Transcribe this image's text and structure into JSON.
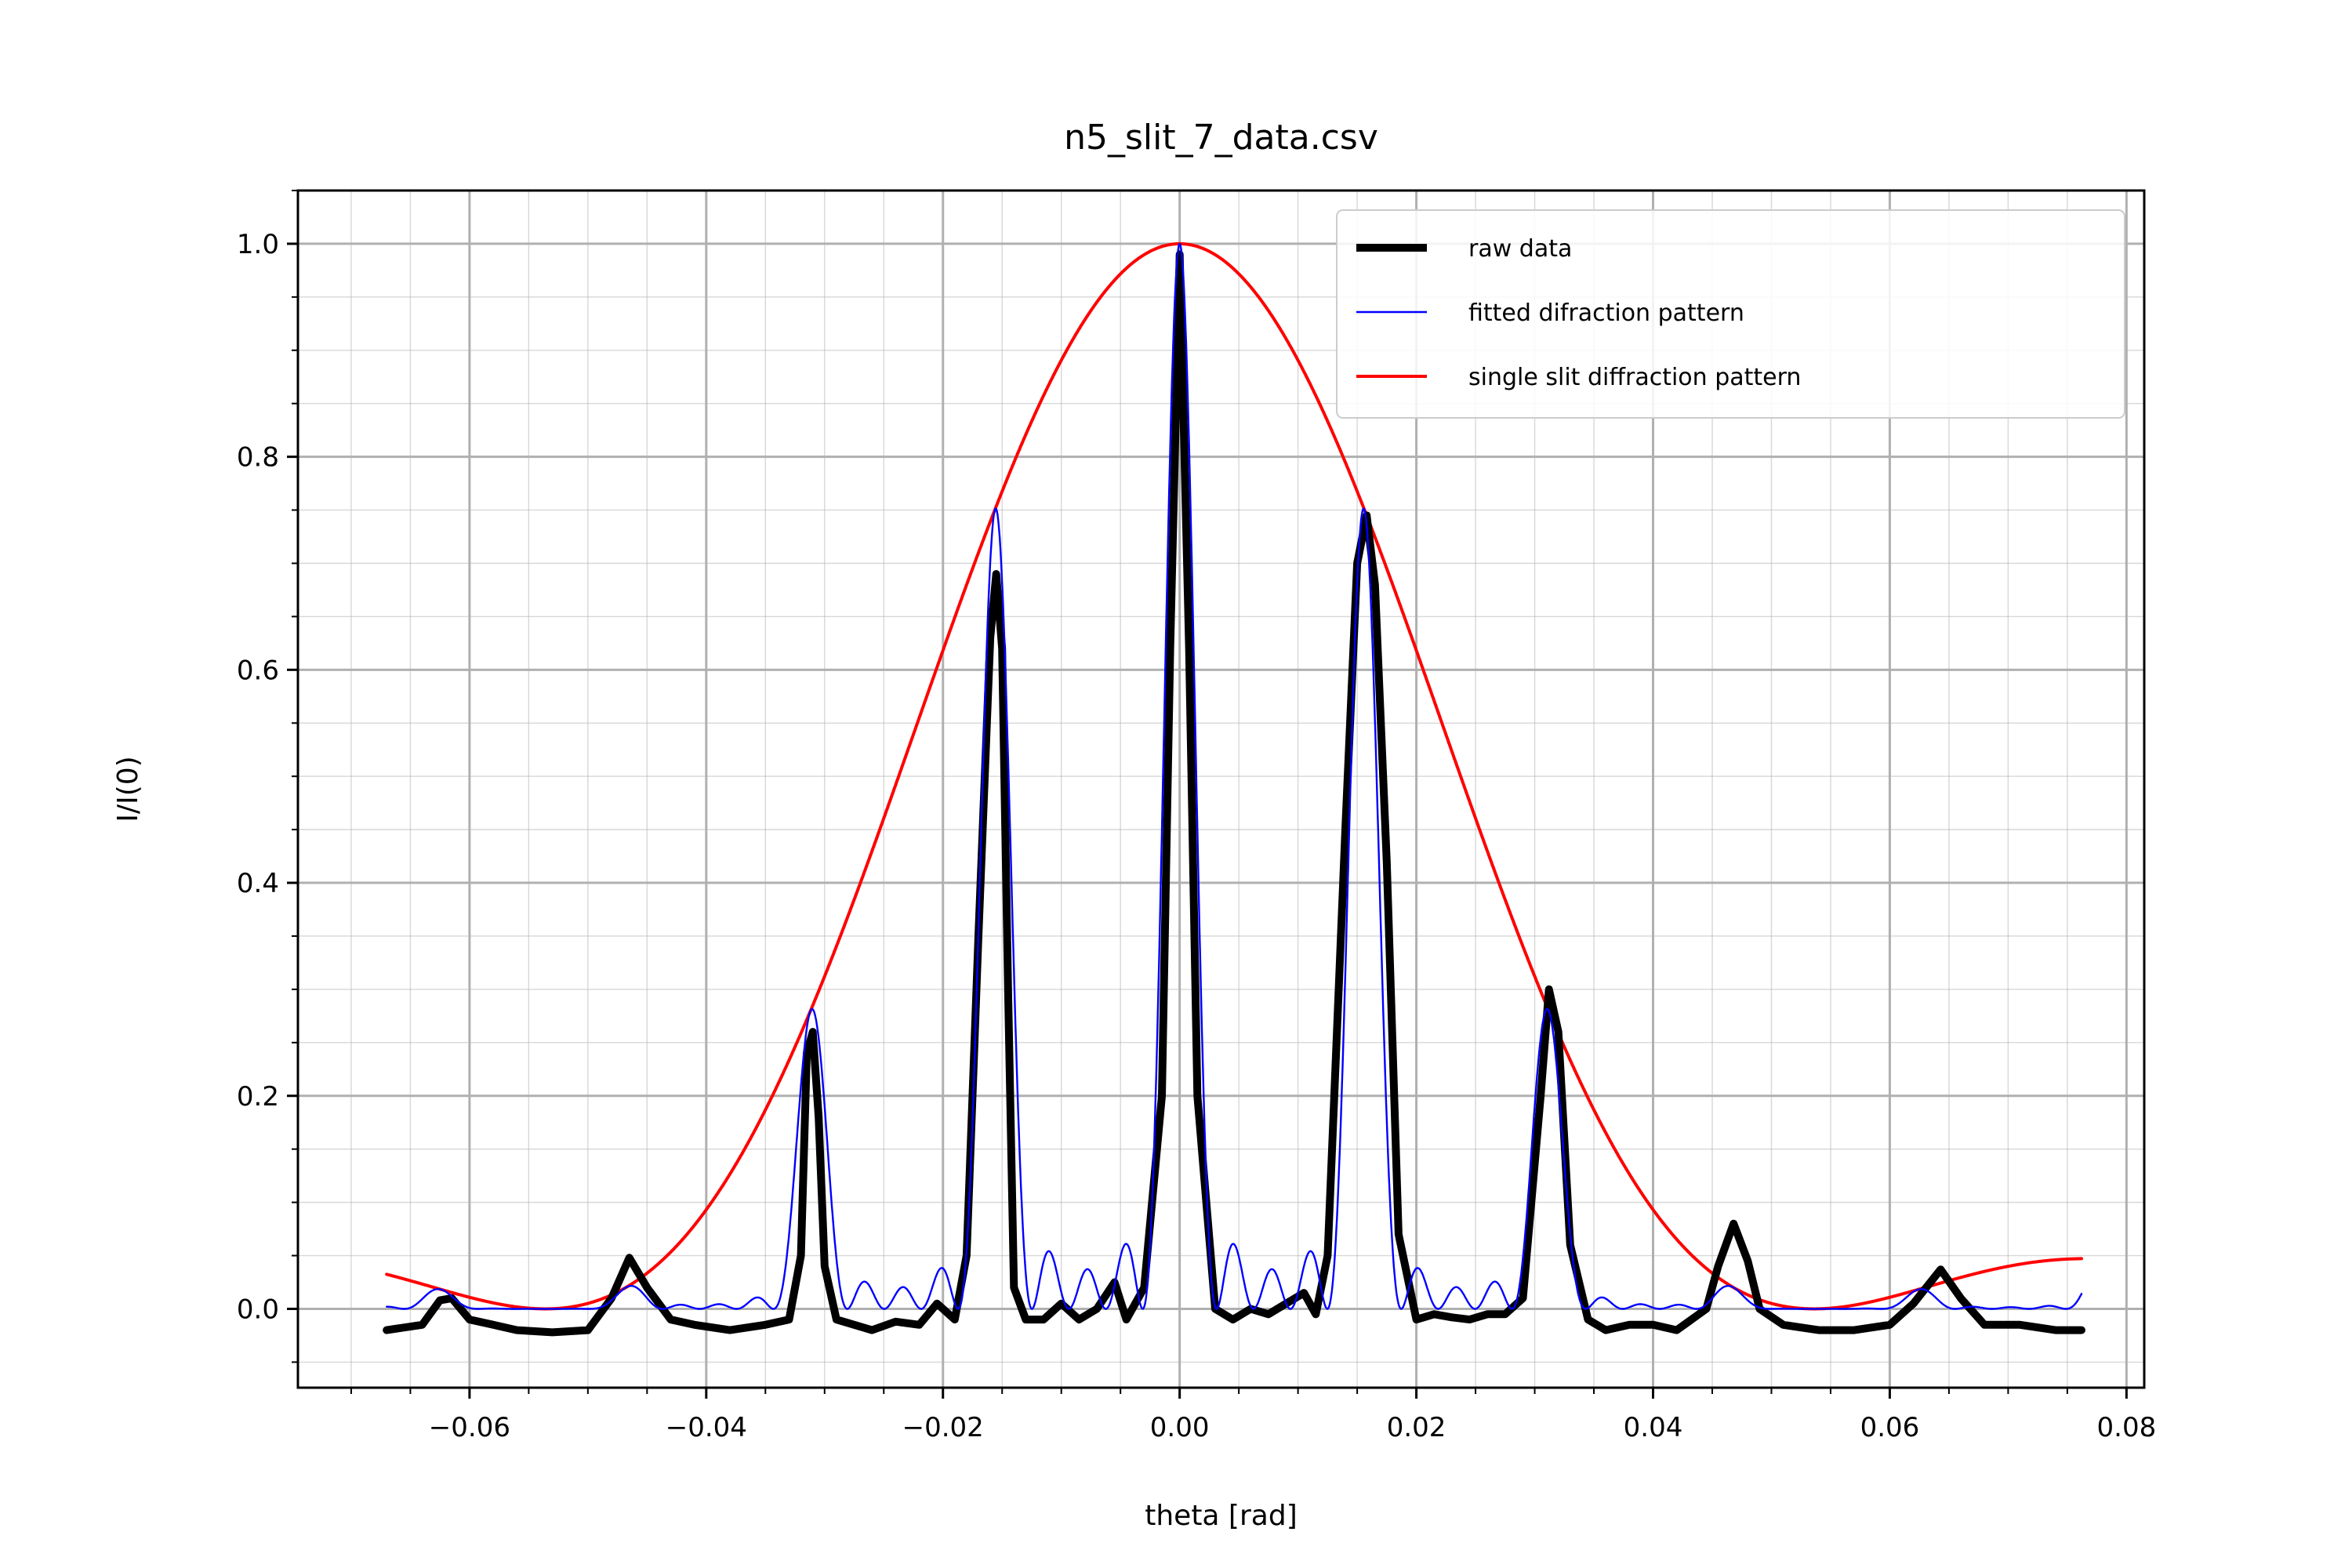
{
  "chart_data": {
    "type": "line",
    "title": "n5_slit_7_data.csv",
    "xlabel": "theta [rad]",
    "ylabel": "I/I(0)",
    "xlim": [
      -0.0745,
      0.0815
    ],
    "ylim": [
      -0.074,
      1.05
    ],
    "x_ticks": [
      -0.06,
      -0.04,
      -0.02,
      0.0,
      0.02,
      0.04,
      0.06,
      0.08
    ],
    "x_tick_labels": [
      "−0.06",
      "−0.04",
      "−0.02",
      "0.00",
      "0.02",
      "0.04",
      "0.06",
      "0.08"
    ],
    "x_minor_step": 0.005,
    "y_ticks": [
      0.0,
      0.2,
      0.4,
      0.6,
      0.8,
      1.0
    ],
    "y_tick_labels": [
      "0.0",
      "0.2",
      "0.4",
      "0.6",
      "0.8",
      "1.0"
    ],
    "y_minor_step": 0.05,
    "grid": true,
    "minor_grid": true,
    "legend_position": "top-right",
    "series": [
      {
        "name": "raw data",
        "color": "#000000",
        "style": "thick",
        "x": [
          -0.067,
          -0.064,
          -0.0625,
          -0.0615,
          -0.06,
          -0.058,
          -0.056,
          -0.053,
          -0.05,
          -0.048,
          -0.0465,
          -0.045,
          -0.043,
          -0.041,
          -0.038,
          -0.035,
          -0.033,
          -0.032,
          -0.0315,
          -0.031,
          -0.0305,
          -0.03,
          -0.029,
          -0.0275,
          -0.026,
          -0.024,
          -0.022,
          -0.0205,
          -0.019,
          -0.018,
          -0.017,
          -0.016,
          -0.0155,
          -0.015,
          -0.0145,
          -0.014,
          -0.013,
          -0.0115,
          -0.01,
          -0.0085,
          -0.007,
          -0.0055,
          -0.0045,
          -0.003,
          -0.0015,
          -0.0008,
          0.0,
          0.0008,
          0.0015,
          0.003,
          0.0045,
          0.006,
          0.0075,
          0.009,
          0.0105,
          0.0115,
          0.0125,
          0.014,
          0.015,
          0.0158,
          0.0165,
          0.0175,
          0.0185,
          0.02,
          0.0215,
          0.023,
          0.0245,
          0.026,
          0.0275,
          0.029,
          0.0305,
          0.0312,
          0.032,
          0.033,
          0.0345,
          0.036,
          0.038,
          0.04,
          0.042,
          0.0445,
          0.0455,
          0.0468,
          0.048,
          0.049,
          0.051,
          0.054,
          0.057,
          0.06,
          0.062,
          0.0643,
          0.066,
          0.068,
          0.071,
          0.074,
          0.0762
        ],
        "y": [
          -0.02,
          -0.015,
          0.008,
          0.01,
          -0.01,
          -0.015,
          -0.02,
          -0.022,
          -0.02,
          0.01,
          0.048,
          0.02,
          -0.01,
          -0.015,
          -0.02,
          -0.015,
          -0.01,
          0.05,
          0.24,
          0.26,
          0.18,
          0.04,
          -0.01,
          -0.015,
          -0.02,
          -0.012,
          -0.015,
          0.005,
          -0.01,
          0.05,
          0.35,
          0.63,
          0.69,
          0.62,
          0.3,
          0.02,
          -0.01,
          -0.01,
          0.005,
          -0.01,
          0.0,
          0.025,
          -0.01,
          0.02,
          0.2,
          0.62,
          0.99,
          0.62,
          0.2,
          0.0,
          -0.01,
          0.0,
          -0.005,
          0.005,
          0.015,
          -0.005,
          0.05,
          0.45,
          0.7,
          0.745,
          0.68,
          0.42,
          0.07,
          -0.01,
          -0.005,
          -0.008,
          -0.01,
          -0.005,
          -0.005,
          0.01,
          0.2,
          0.3,
          0.26,
          0.06,
          -0.01,
          -0.02,
          -0.015,
          -0.015,
          -0.02,
          0.0,
          0.04,
          0.08,
          0.045,
          0.0,
          -0.015,
          -0.02,
          -0.02,
          -0.015,
          0.005,
          0.037,
          0.01,
          -0.015,
          -0.015,
          -0.02,
          -0.02
        ]
      },
      {
        "name": "fitted difraction pattern",
        "color": "#0000ff",
        "style": "thin",
        "kind": "model",
        "model": "multislit",
        "slits": 5,
        "period": 0.0156,
        "envelope_zero": 0.0536
      },
      {
        "name": "single slit diffraction pattern",
        "color": "#ff0000",
        "style": "medium",
        "kind": "model",
        "model": "single_slit",
        "envelope_zero": 0.0536,
        "x_range": [
          -0.067,
          0.0762
        ]
      }
    ]
  }
}
